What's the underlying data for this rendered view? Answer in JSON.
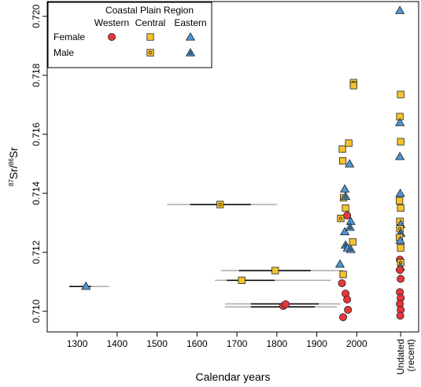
{
  "chart_data": {
    "type": "scatter",
    "xlabel": "Calendar years",
    "ylabel_parts": {
      "sup1": "87",
      "a": "Sr/",
      "sup2": "86",
      "b": "Sr"
    },
    "x_ticks": [
      1300,
      1400,
      1500,
      1600,
      1700,
      1800,
      1900,
      2000
    ],
    "x_tick_labels": [
      "1300",
      "1400",
      "1500",
      "1600",
      "1700",
      "1800",
      "1900",
      "2000"
    ],
    "undated_label": [
      "Undated",
      "(recent)"
    ],
    "undated_x": 2110,
    "xlim": [
      1225,
      2155
    ],
    "y_ticks": [
      0.71,
      0.712,
      0.714,
      0.716,
      0.718,
      0.72
    ],
    "y_tick_labels": [
      "0.710",
      "0.712",
      "0.714",
      "0.716",
      "0.718",
      "0.720"
    ],
    "ylim": [
      0.7093,
      0.7205
    ],
    "colors": {
      "western": "#e8363a",
      "central": "#f5c42c",
      "eastern": "#4f95d2",
      "outline": "#222222",
      "range_gray": "#aaaaaa",
      "range_black": "#000000"
    },
    "legend": {
      "title": "Coastal Plain Region",
      "columns": [
        "Western",
        "Central",
        "Eastern"
      ],
      "rows": [
        "Female",
        "Male"
      ],
      "placement": "top-left"
    },
    "ranges": [
      {
        "y": 0.71084,
        "gray": [
          1280,
          1380
        ],
        "black": [
          1280,
          1335
        ]
      },
      {
        "y": 0.71362,
        "gray": [
          1525,
          1800
        ],
        "black": [
          1583,
          1735
        ]
      },
      {
        "y": 0.71138,
        "gray": [
          1660,
          1965
        ],
        "black": [
          1705,
          1885
        ]
      },
      {
        "y": 0.71105,
        "gray": [
          1645,
          1935
        ],
        "black": [
          1675,
          1795
        ]
      },
      {
        "y": 0.71025,
        "gray": [
          1670,
          1960
        ],
        "black": [
          1735,
          1905
        ]
      },
      {
        "y": 0.71015,
        "gray": [
          1670,
          1950
        ],
        "black": [
          1735,
          1895
        ]
      }
    ],
    "points": [
      {
        "x": 1322,
        "y": 0.71085,
        "region": "eastern",
        "sex": "female"
      },
      {
        "x": 1658,
        "y": 0.71362,
        "region": "central",
        "sex": "male"
      },
      {
        "x": 1796,
        "y": 0.71138,
        "region": "central",
        "sex": "female"
      },
      {
        "x": 1712,
        "y": 0.71105,
        "region": "central",
        "sex": "female"
      },
      {
        "x": 1816,
        "y": 0.71018,
        "region": "western",
        "sex": "female"
      },
      {
        "x": 1822,
        "y": 0.71024,
        "region": "western",
        "sex": "female"
      },
      {
        "x": 1958,
        "y": 0.7116,
        "region": "eastern",
        "sex": "female"
      },
      {
        "x": 1964,
        "y": 0.7155,
        "region": "central",
        "sex": "female"
      },
      {
        "x": 1965,
        "y": 0.7151,
        "region": "central",
        "sex": "female"
      },
      {
        "x": 1967,
        "y": 0.71385,
        "region": "central",
        "sex": "male"
      },
      {
        "x": 1960,
        "y": 0.71315,
        "region": "central",
        "sex": "male"
      },
      {
        "x": 1966,
        "y": 0.71125,
        "region": "central",
        "sex": "female"
      },
      {
        "x": 1963,
        "y": 0.71095,
        "region": "western",
        "sex": "female"
      },
      {
        "x": 1966,
        "y": 0.7098,
        "region": "western",
        "sex": "female"
      },
      {
        "x": 1970,
        "y": 0.71415,
        "region": "eastern",
        "sex": "female"
      },
      {
        "x": 1972,
        "y": 0.7139,
        "region": "eastern",
        "sex": "male"
      },
      {
        "x": 1972,
        "y": 0.7135,
        "region": "central",
        "sex": "female"
      },
      {
        "x": 1976,
        "y": 0.71325,
        "region": "western",
        "sex": "female"
      },
      {
        "x": 1970,
        "y": 0.7127,
        "region": "eastern",
        "sex": "female"
      },
      {
        "x": 1972,
        "y": 0.71225,
        "region": "eastern",
        "sex": "male"
      },
      {
        "x": 1977,
        "y": 0.71215,
        "region": "eastern",
        "sex": "female"
      },
      {
        "x": 1972,
        "y": 0.7106,
        "region": "western",
        "sex": "female"
      },
      {
        "x": 1976,
        "y": 0.7104,
        "region": "western",
        "sex": "female"
      },
      {
        "x": 1978,
        "y": 0.71005,
        "region": "western",
        "sex": "female"
      },
      {
        "x": 1980,
        "y": 0.7157,
        "region": "central",
        "sex": "female"
      },
      {
        "x": 1982,
        "y": 0.715,
        "region": "eastern",
        "sex": "female"
      },
      {
        "x": 1985,
        "y": 0.71305,
        "region": "eastern",
        "sex": "female"
      },
      {
        "x": 1983,
        "y": 0.71285,
        "region": "eastern",
        "sex": "male"
      },
      {
        "x": 1990,
        "y": 0.71235,
        "region": "central",
        "sex": "female"
      },
      {
        "x": 1985,
        "y": 0.7121,
        "region": "eastern",
        "sex": "male"
      },
      {
        "x": 1992,
        "y": 0.71775,
        "region": "central",
        "sex": "male"
      },
      {
        "x": 1992,
        "y": 0.71765,
        "region": "central",
        "sex": "female"
      },
      {
        "x": 2108,
        "y": 0.7202,
        "region": "eastern",
        "sex": "female"
      },
      {
        "x": 2110,
        "y": 0.71735,
        "region": "central",
        "sex": "female"
      },
      {
        "x": 2108,
        "y": 0.7166,
        "region": "central",
        "sex": "female"
      },
      {
        "x": 2108,
        "y": 0.7164,
        "region": "eastern",
        "sex": "female"
      },
      {
        "x": 2110,
        "y": 0.71575,
        "region": "central",
        "sex": "female"
      },
      {
        "x": 2108,
        "y": 0.71525,
        "region": "eastern",
        "sex": "female"
      },
      {
        "x": 2109,
        "y": 0.714,
        "region": "eastern",
        "sex": "female"
      },
      {
        "x": 2107,
        "y": 0.71375,
        "region": "central",
        "sex": "female"
      },
      {
        "x": 2110,
        "y": 0.7135,
        "region": "central",
        "sex": "female"
      },
      {
        "x": 2108,
        "y": 0.71305,
        "region": "central",
        "sex": "female"
      },
      {
        "x": 2110,
        "y": 0.71295,
        "region": "eastern",
        "sex": "female"
      },
      {
        "x": 2108,
        "y": 0.7128,
        "region": "central",
        "sex": "male"
      },
      {
        "x": 2110,
        "y": 0.71265,
        "region": "eastern",
        "sex": "male"
      },
      {
        "x": 2107,
        "y": 0.7125,
        "region": "central",
        "sex": "female"
      },
      {
        "x": 2109,
        "y": 0.7124,
        "region": "eastern",
        "sex": "female"
      },
      {
        "x": 2110,
        "y": 0.71215,
        "region": "central",
        "sex": "female"
      },
      {
        "x": 2108,
        "y": 0.71175,
        "region": "western",
        "sex": "female"
      },
      {
        "x": 2110,
        "y": 0.71165,
        "region": "central",
        "sex": "male"
      },
      {
        "x": 2109,
        "y": 0.7115,
        "region": "eastern",
        "sex": "female"
      },
      {
        "x": 2108,
        "y": 0.7114,
        "region": "western",
        "sex": "female"
      },
      {
        "x": 2110,
        "y": 0.7111,
        "region": "western",
        "sex": "female"
      },
      {
        "x": 2108,
        "y": 0.71065,
        "region": "western",
        "sex": "female"
      },
      {
        "x": 2110,
        "y": 0.71045,
        "region": "western",
        "sex": "female"
      },
      {
        "x": 2108,
        "y": 0.71025,
        "region": "western",
        "sex": "female"
      },
      {
        "x": 2110,
        "y": 0.71005,
        "region": "western",
        "sex": "female"
      },
      {
        "x": 2109,
        "y": 0.70985,
        "region": "western",
        "sex": "female"
      }
    ]
  }
}
